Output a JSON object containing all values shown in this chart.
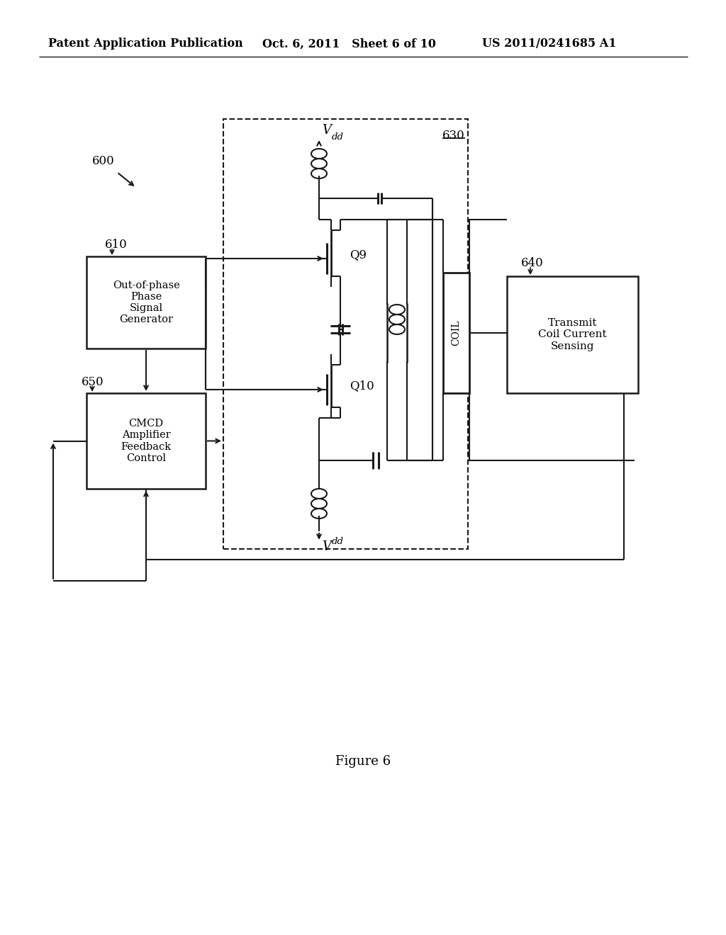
{
  "bg_color": "#ffffff",
  "header_left": "Patent Application Publication",
  "header_mid": "Oct. 6, 2011   Sheet 6 of 10",
  "header_right": "US 2011/0241685 A1",
  "figure_label": "Figure 6",
  "label_600": "600",
  "label_610": "610",
  "label_630": "630",
  "label_640": "640",
  "label_650": "650",
  "box_610_text": "Out-of-phase\nPhase\nSignal\nGenerator",
  "box_640_text": "Transmit\nCoil Current\nSensing",
  "box_650_text": "CMCD\nAmplifier\nFeedback\nControl",
  "coil_box_text": "COIL",
  "q9_label": "Q9",
  "q10_label": "Q10",
  "line_color": "#1a1a1a"
}
